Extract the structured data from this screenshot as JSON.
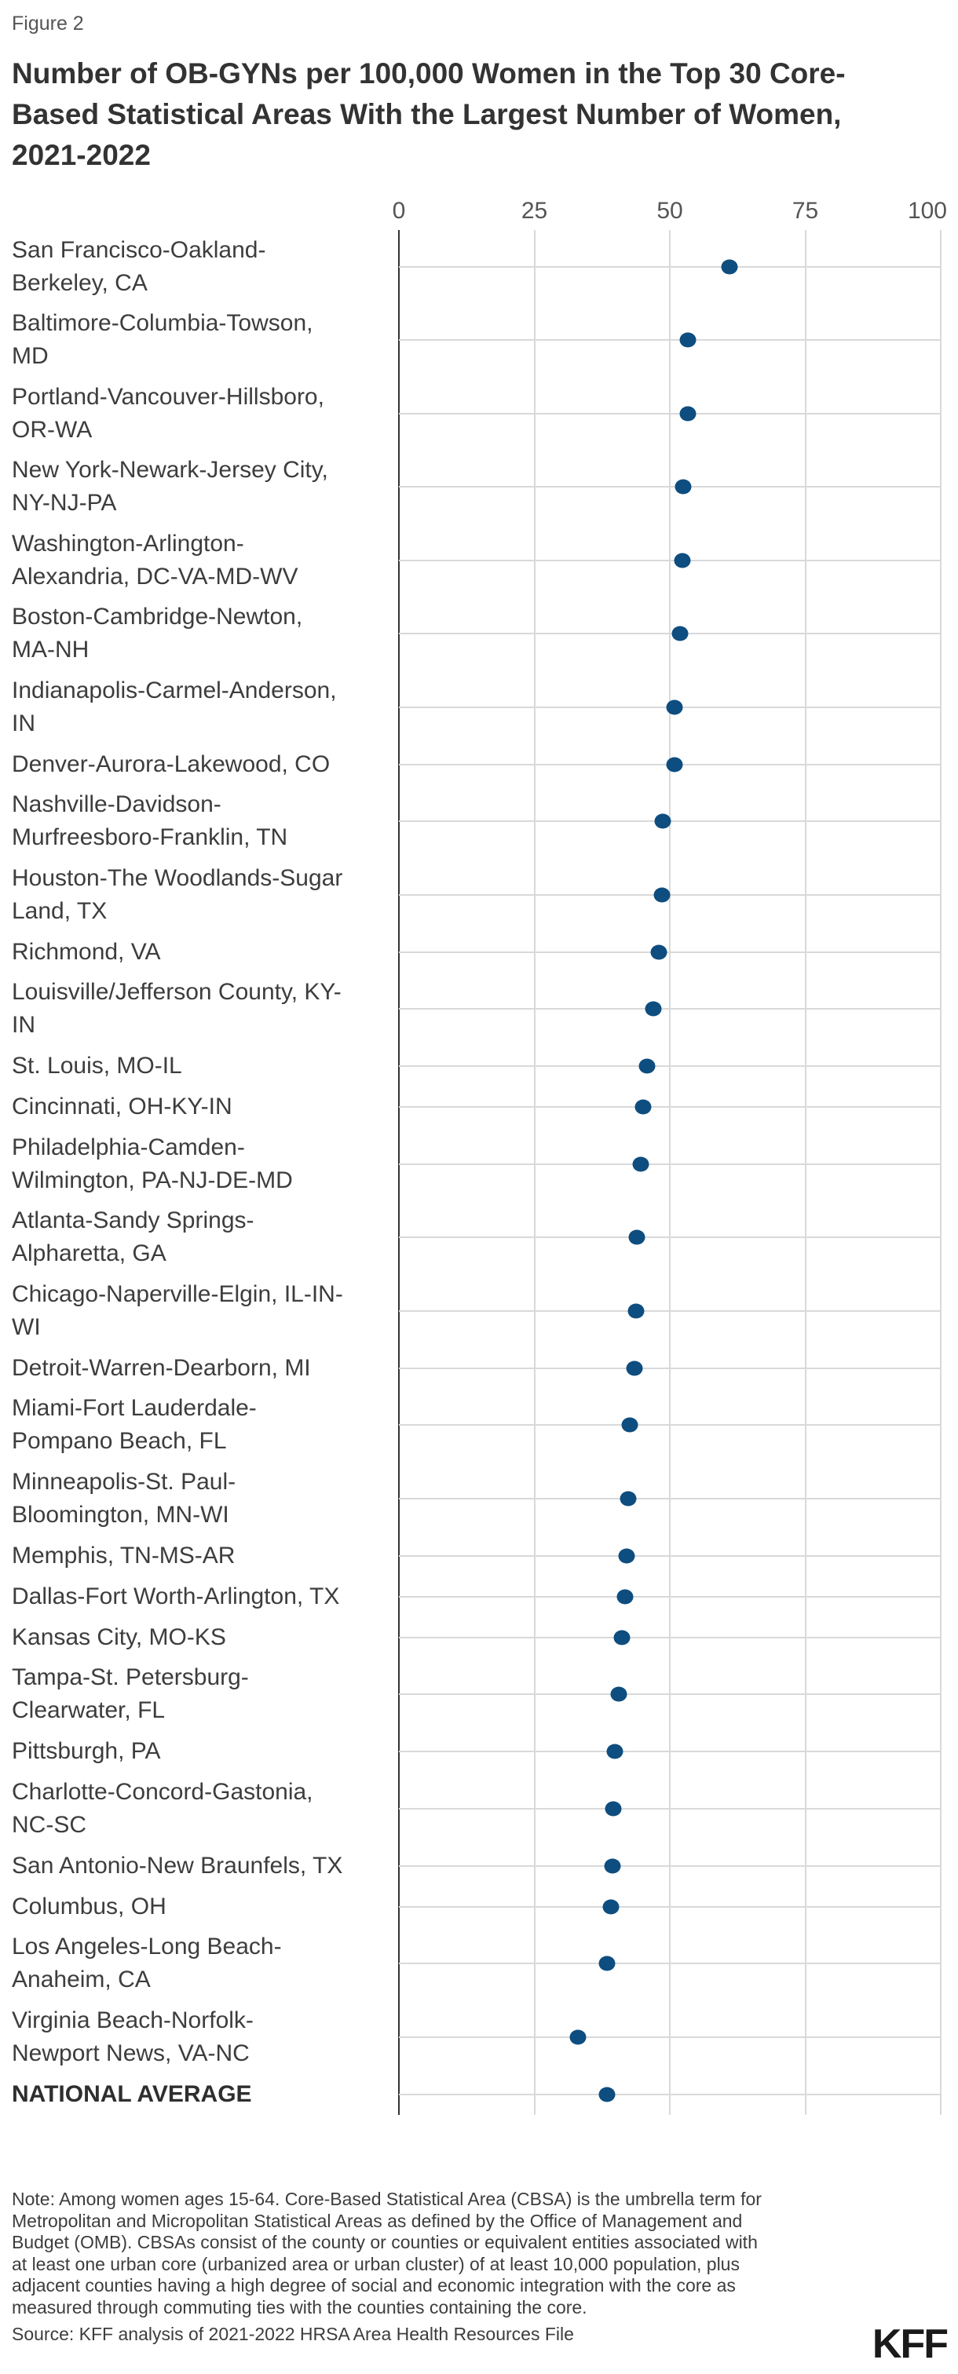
{
  "figure_label": "Figure 2",
  "title": "Number of OB-GYNs per 100,000 Women in the Top 30 Core-\nBased Statistical Areas With the Largest Number of Women,\n2021-2022",
  "chart_data": {
    "type": "scatter",
    "subtype": "horizontal-dot-plot",
    "title": "Number of OB-GYNs per 100,000 Women in the Top 30 Core-Based Statistical Areas With the Largest Number of Women, 2021-2022",
    "xlabel": "",
    "ylabel": "",
    "xlim": [
      0,
      100
    ],
    "x_ticks": [
      0,
      25,
      50,
      75,
      100
    ],
    "x_tick_labels": [
      "0",
      "25",
      "50",
      "75",
      "100"
    ],
    "grid": true,
    "legend": "none",
    "dot_color": "#0e4d7f",
    "axis_line_color": "#333333",
    "gridline_color": "#d9d9d9",
    "categories": [
      "San Francisco-Oakland-\nBerkeley, CA",
      "Baltimore-Columbia-Towson,\nMD",
      "Portland-Vancouver-Hillsboro,\nOR-WA",
      "New York-Newark-Jersey City,\nNY-NJ-PA",
      "Washington-Arlington-\nAlexandria, DC-VA-MD-WV",
      "Boston-Cambridge-Newton,\nMA-NH",
      "Indianapolis-Carmel-Anderson,\nIN",
      "Denver-Aurora-Lakewood, CO",
      "Nashville-Davidson-\nMurfreesboro-Franklin, TN",
      "Houston-The Woodlands-Sugar\nLand, TX",
      "Richmond, VA",
      "Louisville/Jefferson County, KY-\nIN",
      "St. Louis, MO-IL",
      "Cincinnati, OH-KY-IN",
      "Philadelphia-Camden-\nWilmington, PA-NJ-DE-MD",
      "Atlanta-Sandy Springs-\nAlpharetta, GA",
      "Chicago-Naperville-Elgin, IL-IN-\nWI",
      "Detroit-Warren-Dearborn, MI",
      "Miami-Fort Lauderdale-\nPompano Beach, FL",
      "Minneapolis-St. Paul-\nBloomington, MN-WI",
      "Memphis, TN-MS-AR",
      "Dallas-Fort Worth-Arlington, TX",
      "Kansas City, MO-KS",
      "Tampa-St. Petersburg-\nClearwater, FL",
      "Pittsburgh, PA",
      "Charlotte-Concord-Gastonia,\nNC-SC",
      "San Antonio-New Braunfels, TX",
      "Columbus, OH",
      "Los Angeles-Long Beach-\nAnaheim, CA",
      "Virginia Beach-Norfolk-\nNewport News, VA-NC",
      "NATIONAL AVERAGE"
    ],
    "values": [
      61.0,
      53.4,
      53.3,
      52.4,
      52.3,
      51.9,
      50.9,
      50.8,
      48.7,
      48.6,
      48.0,
      46.9,
      45.8,
      45.1,
      44.6,
      43.9,
      43.7,
      43.5,
      42.6,
      42.3,
      42.0,
      41.7,
      41.2,
      40.6,
      39.9,
      39.6,
      39.4,
      39.2,
      38.4,
      33.1,
      38.4
    ],
    "bold_category": "NATIONAL AVERAGE"
  },
  "footer": {
    "note": "Note: Among women ages 15-64. Core-Based Statistical Area (CBSA) is the umbrella term for\nMetropolitan and Micropolitan Statistical Areas as defined by the Office of Management and\nBudget (OMB). CBSAs consist of the county or counties or equivalent entities associated with\nat least one urban core (urbanized area or urban cluster) of at least 10,000 population, plus\nadjacent counties having a high degree of social and economic integration with the core as\nmeasured through commuting ties with the counties containing the core.",
    "source": "Source: KFF analysis of 2021-2022 HRSA Area Health Resources File",
    "logo": "KFF"
  }
}
